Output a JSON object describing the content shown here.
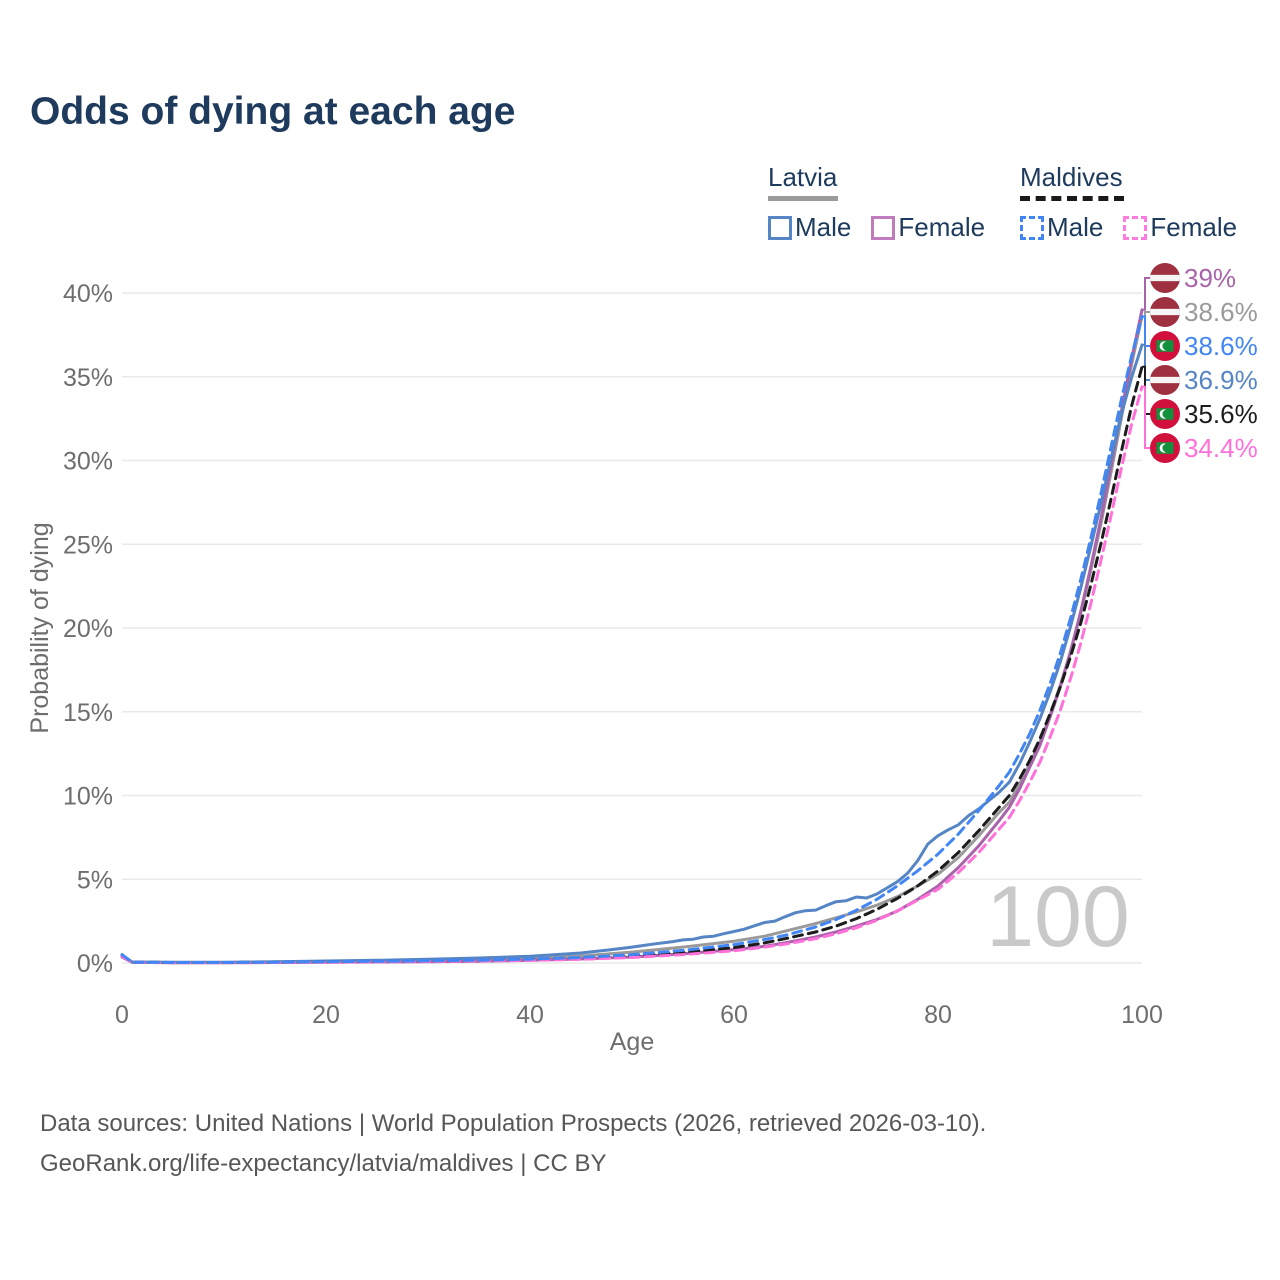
{
  "title": "Odds of dying at each age",
  "legend": {
    "groups": [
      {
        "label": "Latvia",
        "swatch_color": "#9a9a9a",
        "swatch_style": "solid",
        "items": [
          {
            "label": "Male",
            "color": "#5585c4",
            "style": "solid"
          },
          {
            "label": "Female",
            "color": "#bf7cbf",
            "style": "solid"
          }
        ]
      },
      {
        "label": "Maldives",
        "swatch_color": "#1a1a1a",
        "swatch_style": "dashed",
        "items": [
          {
            "label": "Male",
            "color": "#4286f5",
            "style": "dashed"
          },
          {
            "label": "Female",
            "color": "#ff7bdf",
            "style": "dashed"
          }
        ]
      }
    ]
  },
  "chart_data": {
    "type": "line",
    "title": "Odds of dying at each age",
    "xlabel": "Age",
    "ylabel": "Probability of dying",
    "xlim": [
      0,
      100
    ],
    "ylim": [
      0,
      40
    ],
    "x_ticks": [
      0,
      20,
      40,
      60,
      80,
      100
    ],
    "y_ticks": [
      0,
      5,
      10,
      15,
      20,
      25,
      30,
      35,
      40
    ],
    "y_tick_suffix": "%",
    "grid": "horizontal",
    "legend_position": "top-right",
    "watermark": "100",
    "series": [
      {
        "name": "Latvia",
        "country": "Latvia",
        "sex": "both",
        "color": "#9a9a9a",
        "dash": false,
        "points": [
          [
            0,
            0.4
          ],
          [
            1,
            0.05
          ],
          [
            5,
            0.03
          ],
          [
            10,
            0.03
          ],
          [
            15,
            0.05
          ],
          [
            20,
            0.08
          ],
          [
            25,
            0.11
          ],
          [
            30,
            0.15
          ],
          [
            35,
            0.2
          ],
          [
            40,
            0.28
          ],
          [
            45,
            0.42
          ],
          [
            50,
            0.65
          ],
          [
            55,
            0.95
          ],
          [
            60,
            1.3
          ],
          [
            63,
            1.6
          ],
          [
            65,
            1.9
          ],
          [
            68,
            2.35
          ],
          [
            70,
            2.7
          ],
          [
            72,
            3.05
          ],
          [
            74,
            3.45
          ],
          [
            76,
            3.95
          ],
          [
            78,
            4.6
          ],
          [
            80,
            5.3
          ],
          [
            82,
            6.3
          ],
          [
            84,
            7.6
          ],
          [
            86,
            9.0
          ],
          [
            87,
            9.6
          ],
          [
            88,
            10.7
          ],
          [
            89,
            11.9
          ],
          [
            90,
            13.2
          ],
          [
            91,
            14.8
          ],
          [
            92,
            16.6
          ],
          [
            93,
            18.6
          ],
          [
            94,
            20.9
          ],
          [
            95,
            23.5
          ],
          [
            96,
            26.3
          ],
          [
            97,
            29.4
          ],
          [
            98,
            32.6
          ],
          [
            99,
            35.8
          ],
          [
            100,
            38.6
          ]
        ]
      },
      {
        "name": "Latvia Female",
        "country": "Latvia",
        "sex": "female",
        "color": "#a963aa",
        "dash": false,
        "points": [
          [
            0,
            0.35
          ],
          [
            1,
            0.04
          ],
          [
            5,
            0.02
          ],
          [
            10,
            0.02
          ],
          [
            15,
            0.03
          ],
          [
            20,
            0.05
          ],
          [
            25,
            0.06
          ],
          [
            30,
            0.08
          ],
          [
            35,
            0.11
          ],
          [
            40,
            0.16
          ],
          [
            45,
            0.24
          ],
          [
            50,
            0.36
          ],
          [
            55,
            0.55
          ],
          [
            60,
            0.8
          ],
          [
            63,
            1.0
          ],
          [
            65,
            1.2
          ],
          [
            68,
            1.55
          ],
          [
            70,
            1.85
          ],
          [
            72,
            2.2
          ],
          [
            74,
            2.6
          ],
          [
            76,
            3.1
          ],
          [
            78,
            3.8
          ],
          [
            80,
            4.6
          ],
          [
            82,
            5.7
          ],
          [
            84,
            7.0
          ],
          [
            86,
            8.5
          ],
          [
            87,
            9.3
          ],
          [
            88,
            10.4
          ],
          [
            89,
            11.7
          ],
          [
            90,
            13.0
          ],
          [
            91,
            14.7
          ],
          [
            92,
            16.5
          ],
          [
            93,
            18.6
          ],
          [
            94,
            21.0
          ],
          [
            95,
            23.7
          ],
          [
            96,
            26.6
          ],
          [
            97,
            29.8
          ],
          [
            98,
            33.0
          ],
          [
            99,
            36.1
          ],
          [
            100,
            39.0
          ]
        ]
      },
      {
        "name": "Latvia Male",
        "country": "Latvia",
        "sex": "male",
        "color": "#5585c4",
        "dash": false,
        "points": [
          [
            0,
            0.45
          ],
          [
            1,
            0.06
          ],
          [
            5,
            0.04
          ],
          [
            10,
            0.04
          ],
          [
            15,
            0.07
          ],
          [
            20,
            0.12
          ],
          [
            25,
            0.16
          ],
          [
            30,
            0.22
          ],
          [
            35,
            0.3
          ],
          [
            40,
            0.4
          ],
          [
            45,
            0.6
          ],
          [
            48,
            0.8
          ],
          [
            50,
            0.95
          ],
          [
            52,
            1.12
          ],
          [
            54,
            1.28
          ],
          [
            55,
            1.38
          ],
          [
            56,
            1.42
          ],
          [
            57,
            1.55
          ],
          [
            58,
            1.6
          ],
          [
            59,
            1.75
          ],
          [
            60,
            1.88
          ],
          [
            61,
            2.02
          ],
          [
            62,
            2.22
          ],
          [
            63,
            2.42
          ],
          [
            64,
            2.5
          ],
          [
            65,
            2.76
          ],
          [
            66,
            3.0
          ],
          [
            67,
            3.12
          ],
          [
            68,
            3.16
          ],
          [
            69,
            3.42
          ],
          [
            70,
            3.66
          ],
          [
            71,
            3.72
          ],
          [
            72,
            3.94
          ],
          [
            73,
            3.88
          ],
          [
            74,
            4.12
          ],
          [
            75,
            4.48
          ],
          [
            76,
            4.85
          ],
          [
            77,
            5.35
          ],
          [
            78,
            6.1
          ],
          [
            79,
            7.1
          ],
          [
            80,
            7.6
          ],
          [
            81,
            7.95
          ],
          [
            82,
            8.25
          ],
          [
            83,
            8.8
          ],
          [
            84,
            9.2
          ],
          [
            85,
            9.7
          ],
          [
            86,
            10.2
          ],
          [
            87,
            10.8
          ],
          [
            88,
            11.9
          ],
          [
            89,
            13.2
          ],
          [
            90,
            14.6
          ],
          [
            91,
            16.2
          ],
          [
            92,
            18.0
          ],
          [
            93,
            20.1
          ],
          [
            94,
            22.4
          ],
          [
            95,
            24.9
          ],
          [
            96,
            27.5
          ],
          [
            97,
            30.2
          ],
          [
            98,
            32.8
          ],
          [
            99,
            35.0
          ],
          [
            100,
            36.9
          ]
        ]
      },
      {
        "name": "Maldives",
        "country": "Maldives",
        "sex": "both",
        "color": "#1c1c1c",
        "dash": true,
        "points": [
          [
            0,
            0.45
          ],
          [
            1,
            0.05
          ],
          [
            5,
            0.03
          ],
          [
            10,
            0.03
          ],
          [
            15,
            0.04
          ],
          [
            20,
            0.07
          ],
          [
            25,
            0.09
          ],
          [
            30,
            0.11
          ],
          [
            35,
            0.15
          ],
          [
            40,
            0.2
          ],
          [
            45,
            0.28
          ],
          [
            50,
            0.42
          ],
          [
            55,
            0.63
          ],
          [
            60,
            0.92
          ],
          [
            63,
            1.2
          ],
          [
            65,
            1.45
          ],
          [
            68,
            1.85
          ],
          [
            70,
            2.2
          ],
          [
            72,
            2.65
          ],
          [
            74,
            3.2
          ],
          [
            76,
            3.85
          ],
          [
            78,
            4.6
          ],
          [
            80,
            5.5
          ],
          [
            82,
            6.6
          ],
          [
            84,
            7.9
          ],
          [
            86,
            9.3
          ],
          [
            87,
            10.0
          ],
          [
            88,
            11.0
          ],
          [
            89,
            12.1
          ],
          [
            90,
            13.4
          ],
          [
            91,
            14.9
          ],
          [
            92,
            16.5
          ],
          [
            93,
            18.3
          ],
          [
            94,
            20.3
          ],
          [
            95,
            22.6
          ],
          [
            96,
            25.1
          ],
          [
            97,
            27.8
          ],
          [
            98,
            30.6
          ],
          [
            99,
            33.3
          ],
          [
            100,
            35.6
          ]
        ]
      },
      {
        "name": "Maldives Female",
        "country": "Maldives",
        "sex": "female",
        "color": "#ff70d9",
        "dash": true,
        "points": [
          [
            0,
            0.4
          ],
          [
            1,
            0.04
          ],
          [
            5,
            0.02
          ],
          [
            10,
            0.02
          ],
          [
            15,
            0.03
          ],
          [
            20,
            0.05
          ],
          [
            25,
            0.07
          ],
          [
            30,
            0.09
          ],
          [
            35,
            0.12
          ],
          [
            40,
            0.16
          ],
          [
            45,
            0.22
          ],
          [
            50,
            0.33
          ],
          [
            55,
            0.5
          ],
          [
            60,
            0.73
          ],
          [
            63,
            0.95
          ],
          [
            65,
            1.12
          ],
          [
            68,
            1.45
          ],
          [
            70,
            1.75
          ],
          [
            72,
            2.1
          ],
          [
            74,
            2.55
          ],
          [
            76,
            3.1
          ],
          [
            78,
            3.75
          ],
          [
            80,
            4.4
          ],
          [
            82,
            5.4
          ],
          [
            84,
            6.6
          ],
          [
            86,
            8.0
          ],
          [
            87,
            8.7
          ],
          [
            88,
            9.7
          ],
          [
            89,
            10.8
          ],
          [
            90,
            12.0
          ],
          [
            91,
            13.5
          ],
          [
            92,
            15.1
          ],
          [
            93,
            17.0
          ],
          [
            94,
            19.1
          ],
          [
            95,
            21.5
          ],
          [
            96,
            24.1
          ],
          [
            97,
            26.8
          ],
          [
            98,
            29.6
          ],
          [
            99,
            32.2
          ],
          [
            100,
            34.4
          ]
        ]
      },
      {
        "name": "Maldives Male",
        "country": "Maldives",
        "sex": "male",
        "color": "#4286f5",
        "dash": true,
        "points": [
          [
            0,
            0.5
          ],
          [
            1,
            0.05
          ],
          [
            5,
            0.03
          ],
          [
            10,
            0.03
          ],
          [
            15,
            0.05
          ],
          [
            20,
            0.08
          ],
          [
            25,
            0.1
          ],
          [
            30,
            0.13
          ],
          [
            35,
            0.17
          ],
          [
            40,
            0.23
          ],
          [
            45,
            0.33
          ],
          [
            50,
            0.5
          ],
          [
            55,
            0.75
          ],
          [
            60,
            1.1
          ],
          [
            63,
            1.4
          ],
          [
            65,
            1.65
          ],
          [
            68,
            2.15
          ],
          [
            70,
            2.6
          ],
          [
            72,
            3.15
          ],
          [
            74,
            3.8
          ],
          [
            76,
            4.6
          ],
          [
            78,
            5.5
          ],
          [
            80,
            6.5
          ],
          [
            82,
            7.7
          ],
          [
            84,
            9.1
          ],
          [
            86,
            10.6
          ],
          [
            87,
            11.4
          ],
          [
            88,
            12.5
          ],
          [
            89,
            13.7
          ],
          [
            90,
            15.1
          ],
          [
            91,
            16.7
          ],
          [
            92,
            18.5
          ],
          [
            93,
            20.6
          ],
          [
            94,
            22.9
          ],
          [
            95,
            25.4
          ],
          [
            96,
            28.1
          ],
          [
            97,
            30.9
          ],
          [
            98,
            33.7
          ],
          [
            99,
            36.3
          ],
          [
            100,
            38.6
          ]
        ]
      }
    ],
    "end_labels": [
      {
        "series": "Latvia Female",
        "flag": "lv",
        "text": "39%",
        "value": 39.0,
        "color": "#a963aa"
      },
      {
        "series": "Latvia",
        "flag": "lv",
        "text": "38.6%",
        "value": 38.6,
        "color": "#9a9a9a"
      },
      {
        "series": "Maldives Male",
        "flag": "mv",
        "text": "38.6%",
        "value": 38.6,
        "color": "#4286f5"
      },
      {
        "series": "Latvia Male",
        "flag": "lv",
        "text": "36.9%",
        "value": 36.9,
        "color": "#5585c4"
      },
      {
        "series": "Maldives",
        "flag": "mv",
        "text": "35.6%",
        "value": 35.6,
        "color": "#1c1c1c"
      },
      {
        "series": "Maldives Female",
        "flag": "mv",
        "text": "34.4%",
        "value": 34.4,
        "color": "#ff70d9"
      }
    ],
    "colors": {
      "grid": "#e9e9e9",
      "tick_text": "#6e6e6e",
      "watermark": "#c9c9c9",
      "latvia_flag_red": "#9e3040",
      "maldives_flag_red": "#d2103c",
      "maldives_flag_green": "#12913d"
    }
  },
  "footer": {
    "line1": "Data sources: United Nations | World Population Prospects (2026, retrieved 2026-03-10).",
    "line2": "GeoRank.org/life-expectancy/latvia/maldives | CC BY"
  }
}
